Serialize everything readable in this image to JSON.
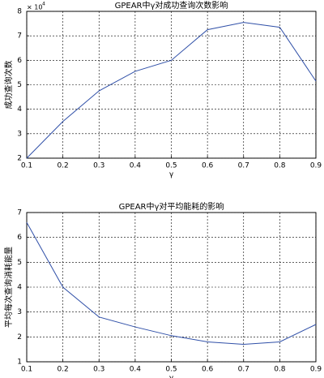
{
  "chart_data": [
    {
      "type": "line",
      "title": "GPEAR中γ对成功查询次数影响",
      "x_label": "γ",
      "y_label": "成功查询次数",
      "y_scale_label": "× 10",
      "y_scale_exponent": "4",
      "x": [
        0.1,
        0.2,
        0.3,
        0.4,
        0.5,
        0.6,
        0.7,
        0.8,
        0.9
      ],
      "series": [
        {
          "name": "成功查询次数",
          "color": "#3050a8",
          "values": [
            2.0,
            3.5,
            4.75,
            5.55,
            6.0,
            7.25,
            7.55,
            7.35,
            5.15
          ]
        }
      ],
      "xlim": [
        0.1,
        0.9
      ],
      "xticks": [
        0.1,
        0.2,
        0.3,
        0.4,
        0.5,
        0.6,
        0.7,
        0.8,
        0.9
      ],
      "ylim": [
        2,
        8
      ],
      "yticks": [
        2,
        3,
        4,
        5,
        6,
        7,
        8
      ],
      "grid": true
    },
    {
      "type": "line",
      "title": "GPEAR中γ对平均能耗的影响",
      "x_label": "γ",
      "y_label": "平均每次查询消耗能量",
      "x": [
        0.1,
        0.2,
        0.3,
        0.4,
        0.5,
        0.6,
        0.7,
        0.8,
        0.9
      ],
      "series": [
        {
          "name": "平均能耗",
          "color": "#3050a8",
          "values": [
            6.6,
            4.0,
            2.8,
            2.4,
            2.05,
            1.8,
            1.7,
            1.8,
            2.5
          ]
        }
      ],
      "xlim": [
        0.1,
        0.9
      ],
      "xticks": [
        0.1,
        0.2,
        0.3,
        0.4,
        0.5,
        0.6,
        0.7,
        0.8,
        0.9
      ],
      "ylim": [
        1,
        7
      ],
      "yticks": [
        1,
        2,
        3,
        4,
        5,
        6,
        7
      ],
      "grid": true
    }
  ]
}
